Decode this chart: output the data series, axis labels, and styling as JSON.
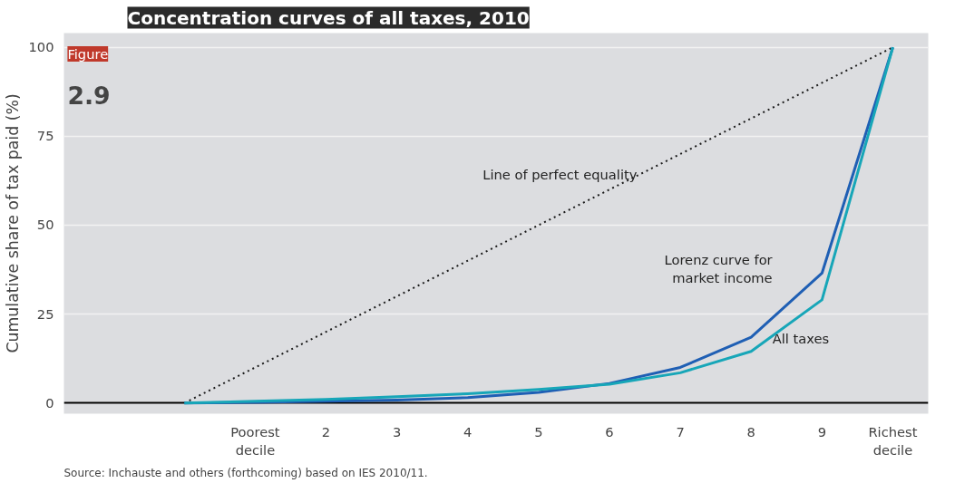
{
  "chart_data": {
    "type": "line",
    "title": "Concentration curves of all taxes, 2010",
    "ylabel": "Cumulative share of tax paid (%)",
    "categories": [
      null,
      "Poorest decile",
      "2",
      "3",
      "4",
      "5",
      "6",
      "7",
      "8",
      "9",
      "Richest decile"
    ],
    "ylim": [
      -3,
      104
    ],
    "yticks": [
      0,
      25,
      50,
      75,
      100
    ],
    "grid": "y",
    "marker": "none",
    "series": [
      {
        "name": "Line of perfect equality",
        "color": "#1a1a1a",
        "line_style": "dotted",
        "values": [
          0,
          10,
          20,
          30,
          40,
          50,
          60,
          70,
          80,
          90,
          100
        ]
      },
      {
        "name": "Lorenz curve for market income",
        "color": "#1f5fb4",
        "values": [
          0,
          0.2,
          0.5,
          0.8,
          1.5,
          3,
          5.5,
          10,
          18.5,
          36.5,
          100
        ]
      },
      {
        "name": "All taxes",
        "color": "#17a6b8",
        "values": [
          0,
          0.5,
          1,
          1.8,
          2.6,
          3.8,
          5.3,
          8.5,
          14.5,
          29,
          100
        ]
      }
    ],
    "annotations": [
      "Figure",
      "2.9",
      "Source: Inchauste and others (forthcoming) based on IES 2010/11."
    ]
  }
}
